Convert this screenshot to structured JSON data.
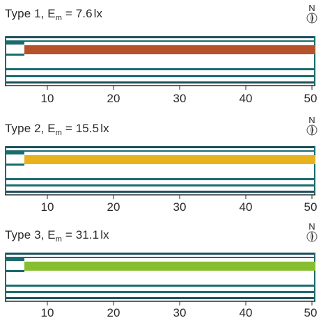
{
  "panels": [
    {
      "type_label": "Type 1",
      "em_symbol": "E",
      "em_subscript": "m",
      "em_value": "7.6",
      "em_unit": "lx",
      "bar_color": "#b5522a",
      "compass_label": "N"
    },
    {
      "type_label": "Type 2",
      "em_symbol": "E",
      "em_subscript": "m",
      "em_value": "15.5",
      "em_unit": "lx",
      "bar_color": "#e6b21e",
      "compass_label": "N"
    },
    {
      "type_label": "Type 3",
      "em_symbol": "E",
      "em_subscript": "m",
      "em_value": "31.1",
      "em_unit": "lx",
      "bar_color": "#86be2f",
      "compass_label": "N"
    }
  ],
  "axis": {
    "ticks": [
      "10",
      "20",
      "30",
      "40",
      "50"
    ]
  },
  "colors": {
    "road_line": "#1a6b6e",
    "road_line_dark": "#1d4f5a"
  }
}
